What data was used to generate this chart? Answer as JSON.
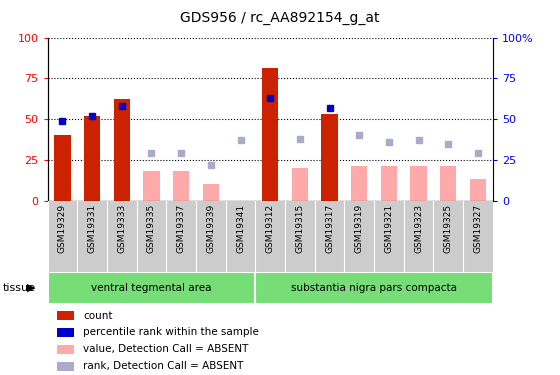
{
  "title": "GDS956 / rc_AA892154_g_at",
  "samples": [
    "GSM19329",
    "GSM19331",
    "GSM19333",
    "GSM19335",
    "GSM19337",
    "GSM19339",
    "GSM19341",
    "GSM19312",
    "GSM19315",
    "GSM19317",
    "GSM19319",
    "GSM19321",
    "GSM19323",
    "GSM19325",
    "GSM19327"
  ],
  "count_values": [
    40,
    52,
    62,
    null,
    null,
    null,
    null,
    81,
    null,
    53,
    null,
    null,
    null,
    null,
    null
  ],
  "count_absent": [
    null,
    null,
    null,
    18,
    18,
    10,
    null,
    null,
    20,
    null,
    21,
    21,
    21,
    21,
    13
  ],
  "rank_present": [
    49,
    52,
    58,
    null,
    null,
    null,
    null,
    63,
    null,
    57,
    null,
    null,
    null,
    null,
    null
  ],
  "rank_absent": [
    null,
    null,
    null,
    29,
    29,
    22,
    37,
    null,
    38,
    null,
    40,
    36,
    37,
    35,
    29
  ],
  "tissue_groups": [
    {
      "label": "ventral tegmental area",
      "start": 0,
      "end": 7
    },
    {
      "label": "substantia nigra pars compacta",
      "start": 7,
      "end": 15
    }
  ],
  "tissue_label": "tissue",
  "bar_color_present": "#cc2200",
  "bar_color_absent": "#ffaaaa",
  "dot_color_present": "#0000cc",
  "dot_color_absent": "#aaaacc",
  "tissue_color": "#77dd77",
  "xtick_bg": "#cccccc",
  "ylim": [
    0,
    100
  ],
  "yticks": [
    0,
    25,
    50,
    75,
    100
  ],
  "right_ytick_labels": [
    "0",
    "25",
    "50",
    "75",
    "100%"
  ],
  "legend_items": [
    {
      "label": "count",
      "color": "#cc2200"
    },
    {
      "label": "percentile rank within the sample",
      "color": "#0000cc"
    },
    {
      "label": "value, Detection Call = ABSENT",
      "color": "#ffaaaa"
    },
    {
      "label": "rank, Detection Call = ABSENT",
      "color": "#aaaacc"
    }
  ]
}
